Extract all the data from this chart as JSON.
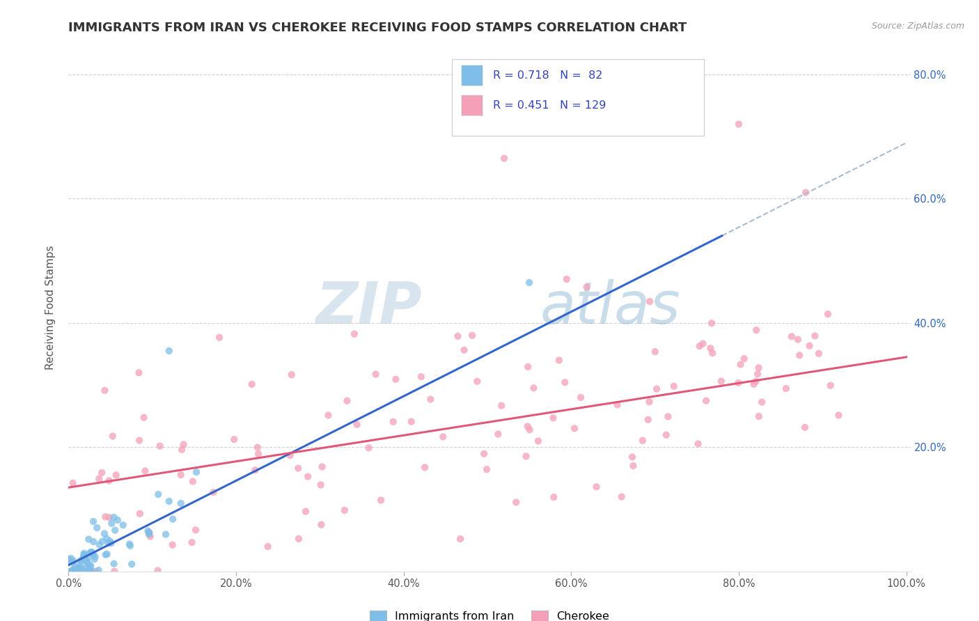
{
  "title": "IMMIGRANTS FROM IRAN VS CHEROKEE RECEIVING FOOD STAMPS CORRELATION CHART",
  "source": "Source: ZipAtlas.com",
  "ylabel": "Receiving Food Stamps",
  "xlim": [
    0.0,
    1.0
  ],
  "ylim": [
    0.0,
    0.85
  ],
  "x_ticks": [
    0.0,
    0.2,
    0.4,
    0.6,
    0.8,
    1.0
  ],
  "x_tick_labels": [
    "0.0%",
    "20.0%",
    "40.0%",
    "60.0%",
    "80.0%",
    "100.0%"
  ],
  "y_ticks": [
    0.2,
    0.4,
    0.6,
    0.8
  ],
  "y_tick_labels": [
    "20.0%",
    "40.0%",
    "60.0%",
    "80.0%"
  ],
  "series1_color": "#7fbee8",
  "series2_color": "#f4a0b8",
  "line1_color": "#3366cc",
  "line2_color": "#e05878",
  "R1": 0.718,
  "N1": 82,
  "R2": 0.451,
  "N2": 129,
  "legend_label1": "Immigrants from Iran",
  "legend_label2": "Cherokee",
  "title_fontsize": 13,
  "label_fontsize": 11,
  "tick_fontsize": 10.5,
  "background_color": "#ffffff",
  "grid_color": "#cccccc",
  "title_color": "#333333",
  "stats_color": "#3344bb",
  "right_tick_color": "#3366bb",
  "watermark_color1": "#c8d8e8",
  "watermark_color2": "#88aacc"
}
